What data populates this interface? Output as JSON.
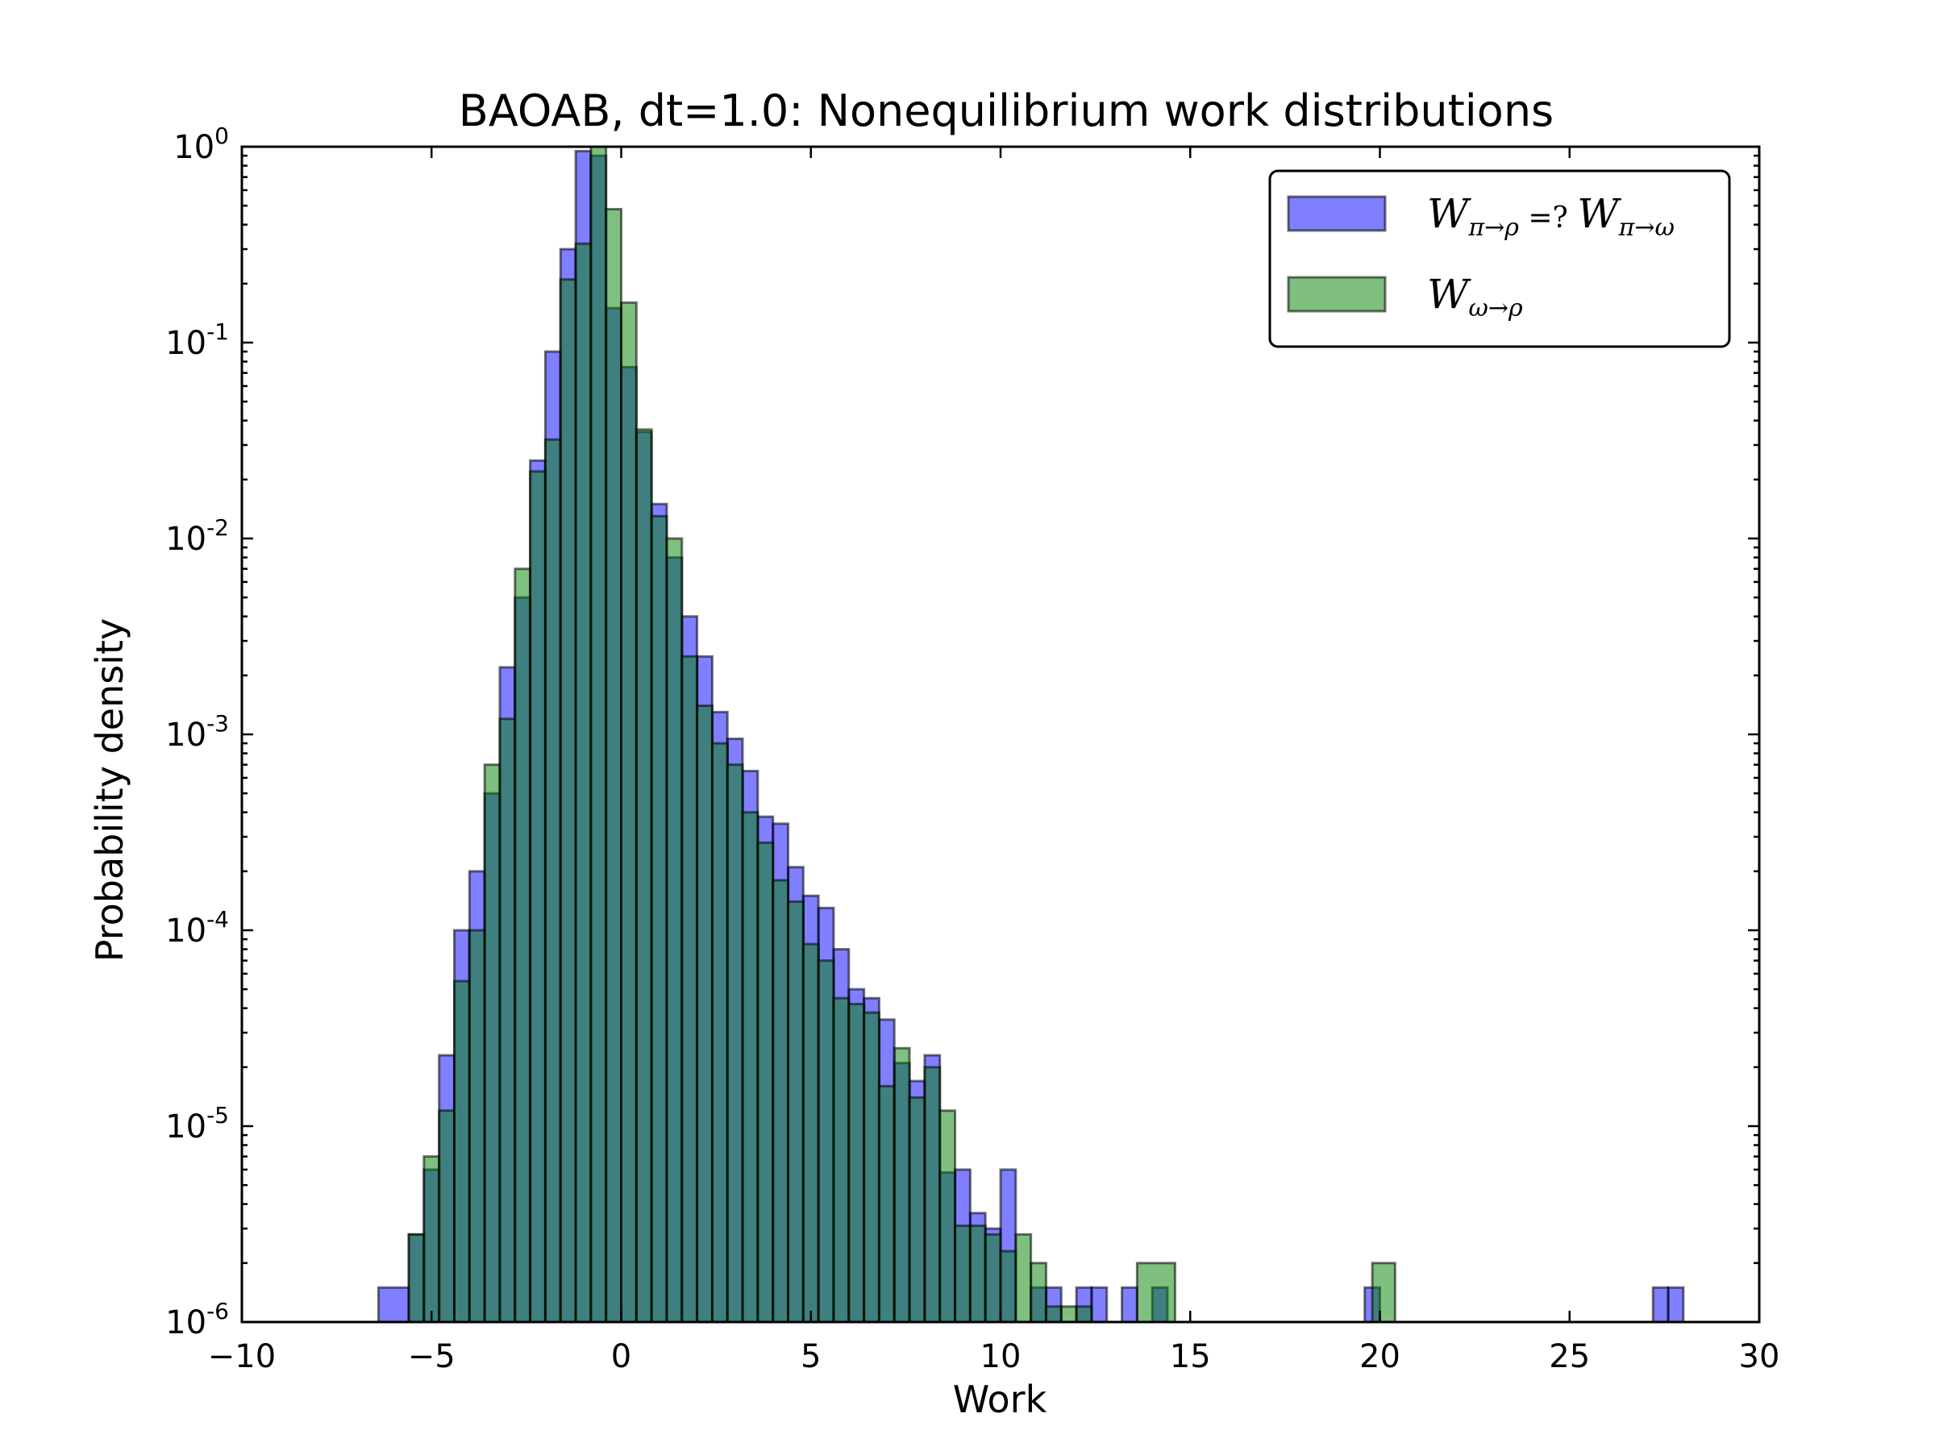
{
  "chart_data": {
    "type": "bar",
    "subtype": "overlapping-histogram",
    "title": "BAOAB, dt=1.0: Nonequilibrium work distributions",
    "xlabel": "Work",
    "ylabel": "Probability density",
    "xlim": [
      -10,
      30
    ],
    "ylim": [
      1e-06,
      1
    ],
    "yscale": "log",
    "grid": false,
    "legend_position": "top-right",
    "xticks": [
      -10,
      -5,
      0,
      5,
      10,
      15,
      20,
      25,
      30
    ],
    "xtick_labels": [
      "−10",
      "−5",
      "0",
      "5",
      "10",
      "15",
      "20",
      "25",
      "30"
    ],
    "yticks": [
      {
        "value": 1,
        "base": "10",
        "exp": "0"
      },
      {
        "value": 0.1,
        "base": "10",
        "exp": "-1"
      },
      {
        "value": 0.01,
        "base": "10",
        "exp": "-2"
      },
      {
        "value": 0.001,
        "base": "10",
        "exp": "-3"
      },
      {
        "value": 0.0001,
        "base": "10",
        "exp": "-4"
      },
      {
        "value": 1e-05,
        "base": "10",
        "exp": "-5"
      },
      {
        "value": 1e-06,
        "base": "10",
        "exp": "-6"
      }
    ],
    "series": [
      {
        "name": "Wπ→ρ =? Wπ→ω",
        "legend_main": "W",
        "legend_sub1": "π→ρ",
        "legend_mid": " =? ",
        "legend_main2": "W",
        "legend_sub2": "π→ω",
        "color": "#0000ff",
        "opacity": 0.5,
        "bin_edges": [
          -6.4,
          -5.6,
          -5.2,
          -4.8,
          -4.4,
          -4.0,
          -3.6,
          -3.2,
          -2.8,
          -2.4,
          -2.0,
          -1.6,
          -1.2,
          -0.8,
          -0.4,
          0.0,
          0.4,
          0.8,
          1.2,
          1.6,
          2.0,
          2.4,
          2.8,
          3.2,
          3.6,
          4.0,
          4.4,
          4.8,
          5.2,
          5.6,
          6.0,
          6.4,
          6.8,
          7.2,
          7.6,
          8.0,
          8.4,
          8.8,
          9.2,
          9.6,
          10.0,
          10.4,
          10.8,
          11.2,
          11.6,
          12.0,
          12.4,
          12.8,
          13.2,
          13.6,
          14.0,
          14.4,
          14.8,
          15.2,
          15.6,
          16.0,
          16.4,
          16.8,
          17.2,
          19.6,
          20.0,
          20.4,
          20.8,
          27.2,
          27.6,
          28.0
        ],
        "values": [
          1.5e-06,
          2.8e-06,
          6e-06,
          2.3e-05,
          0.0001,
          0.0002,
          0.0005,
          0.0022,
          0.005,
          0.025,
          0.09,
          0.3,
          0.95,
          0.9,
          0.15,
          0.075,
          0.035,
          0.015,
          0.008,
          0.004,
          0.0025,
          0.0013,
          0.00095,
          0.00065,
          0.00038,
          0.00035,
          0.00021,
          0.00015,
          0.00013,
          8e-05,
          5e-05,
          4.5e-05,
          3.5e-05,
          2.1e-05,
          1.7e-05,
          2.3e-05,
          5.8e-06,
          6e-06,
          3.6e-06,
          3e-06,
          6e-06,
          1e-06,
          1.5e-06,
          1.5e-06,
          1e-06,
          1.5e-06,
          1.5e-06,
          1e-06,
          1.5e-06,
          1e-06,
          1.5e-06,
          1e-06,
          1e-06,
          1e-06,
          1e-06,
          1e-06,
          1e-06,
          1e-06,
          1e-06,
          1.5e-06,
          1e-06,
          1e-06,
          1e-06,
          1.5e-06,
          1.5e-06
        ]
      },
      {
        "name": "Wω→ρ",
        "legend_main": "W",
        "legend_sub1": "ω→ρ",
        "color": "#008000",
        "opacity": 0.5,
        "bin_edges": [
          -5.6,
          -5.2,
          -4.8,
          -4.4,
          -4.0,
          -3.6,
          -3.2,
          -2.8,
          -2.4,
          -2.0,
          -1.6,
          -1.2,
          -0.8,
          -0.4,
          0.0,
          0.4,
          0.8,
          1.2,
          1.6,
          2.0,
          2.4,
          2.8,
          3.2,
          3.6,
          4.0,
          4.4,
          4.8,
          5.2,
          5.6,
          6.0,
          6.4,
          6.8,
          7.2,
          7.6,
          8.0,
          8.4,
          8.8,
          9.2,
          9.6,
          10.0,
          10.4,
          10.8,
          11.2,
          11.6,
          12.0,
          12.4,
          12.8,
          13.2,
          13.6,
          14.6,
          15.2,
          19.8,
          20.4
        ],
        "values": [
          2.8e-06,
          7e-06,
          1.2e-05,
          5.5e-05,
          0.0001,
          0.0007,
          0.0012,
          0.007,
          0.022,
          0.032,
          0.21,
          0.32,
          1.0,
          0.48,
          0.16,
          0.036,
          0.013,
          0.01,
          0.0025,
          0.0014,
          0.0009,
          0.0007,
          0.0004,
          0.00028,
          0.00018,
          0.00014,
          8.5e-05,
          7e-05,
          4.5e-05,
          4.2e-05,
          3.8e-05,
          1.6e-05,
          2.5e-05,
          1.4e-05,
          2e-05,
          1.2e-05,
          3.1e-06,
          3.1e-06,
          2.8e-06,
          2.3e-06,
          2.8e-06,
          2e-06,
          1.2e-06,
          1.2e-06,
          1.2e-06,
          1e-06,
          1e-06,
          1e-06,
          2e-06,
          1e-06,
          1e-06,
          2e-06
        ]
      }
    ]
  }
}
